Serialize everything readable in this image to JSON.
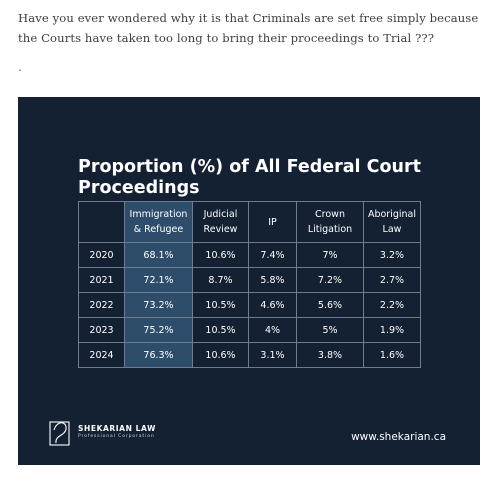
{
  "post": {
    "intro_text": "Have you ever wondered why it is that Criminals are set free simply because the Courts have taken too long to bring their proceedings to Trial ???",
    "separator": "."
  },
  "infographic": {
    "title": "Proportion (%) of All Federal Court Proceedings",
    "columns": [
      "",
      "Immigration & Refugee",
      "Judicial Review",
      "IP",
      "Crown Litigation",
      "Aboriginal Law"
    ],
    "rows": [
      {
        "year": "2020",
        "values": [
          "68.1%",
          "10.6%",
          "7.4%",
          "7%",
          "3.2%"
        ]
      },
      {
        "year": "2021",
        "values": [
          "72.1%",
          "8.7%",
          "5.8%",
          "7.2%",
          "2.7%"
        ]
      },
      {
        "year": "2022",
        "values": [
          "73.2%",
          "10.5%",
          "4.6%",
          "5.6%",
          "2.2%"
        ]
      },
      {
        "year": "2023",
        "values": [
          "75.2%",
          "10.5%",
          "4%",
          "5%",
          "1.9%"
        ]
      },
      {
        "year": "2024",
        "values": [
          "76.3%",
          "10.6%",
          "3.1%",
          "3.8%",
          "1.6%"
        ]
      }
    ],
    "logo_name": "SHEKARIAN LAW",
    "logo_sub": "Professional Corporation",
    "website": "www.shekarian.ca",
    "colors": {
      "card_bg": "#142133",
      "highlight_col": "#2e4d6a",
      "grid": "#6f7c8e"
    }
  },
  "chart_data": {
    "type": "table",
    "title": "Proportion (%) of All Federal Court Proceedings",
    "categories": [
      "2020",
      "2021",
      "2022",
      "2023",
      "2024"
    ],
    "series": [
      {
        "name": "Immigration & Refugee",
        "values": [
          68.1,
          72.1,
          73.2,
          75.2,
          76.3
        ]
      },
      {
        "name": "Judicial Review",
        "values": [
          10.6,
          8.7,
          10.5,
          10.5,
          10.6
        ]
      },
      {
        "name": "IP",
        "values": [
          7.4,
          5.8,
          4.6,
          4,
          3.1
        ]
      },
      {
        "name": "Crown Litigation",
        "values": [
          7,
          7.2,
          5.6,
          5,
          3.8
        ]
      },
      {
        "name": "Aboriginal Law",
        "values": [
          3.2,
          2.7,
          2.2,
          1.9,
          1.6
        ]
      }
    ]
  }
}
